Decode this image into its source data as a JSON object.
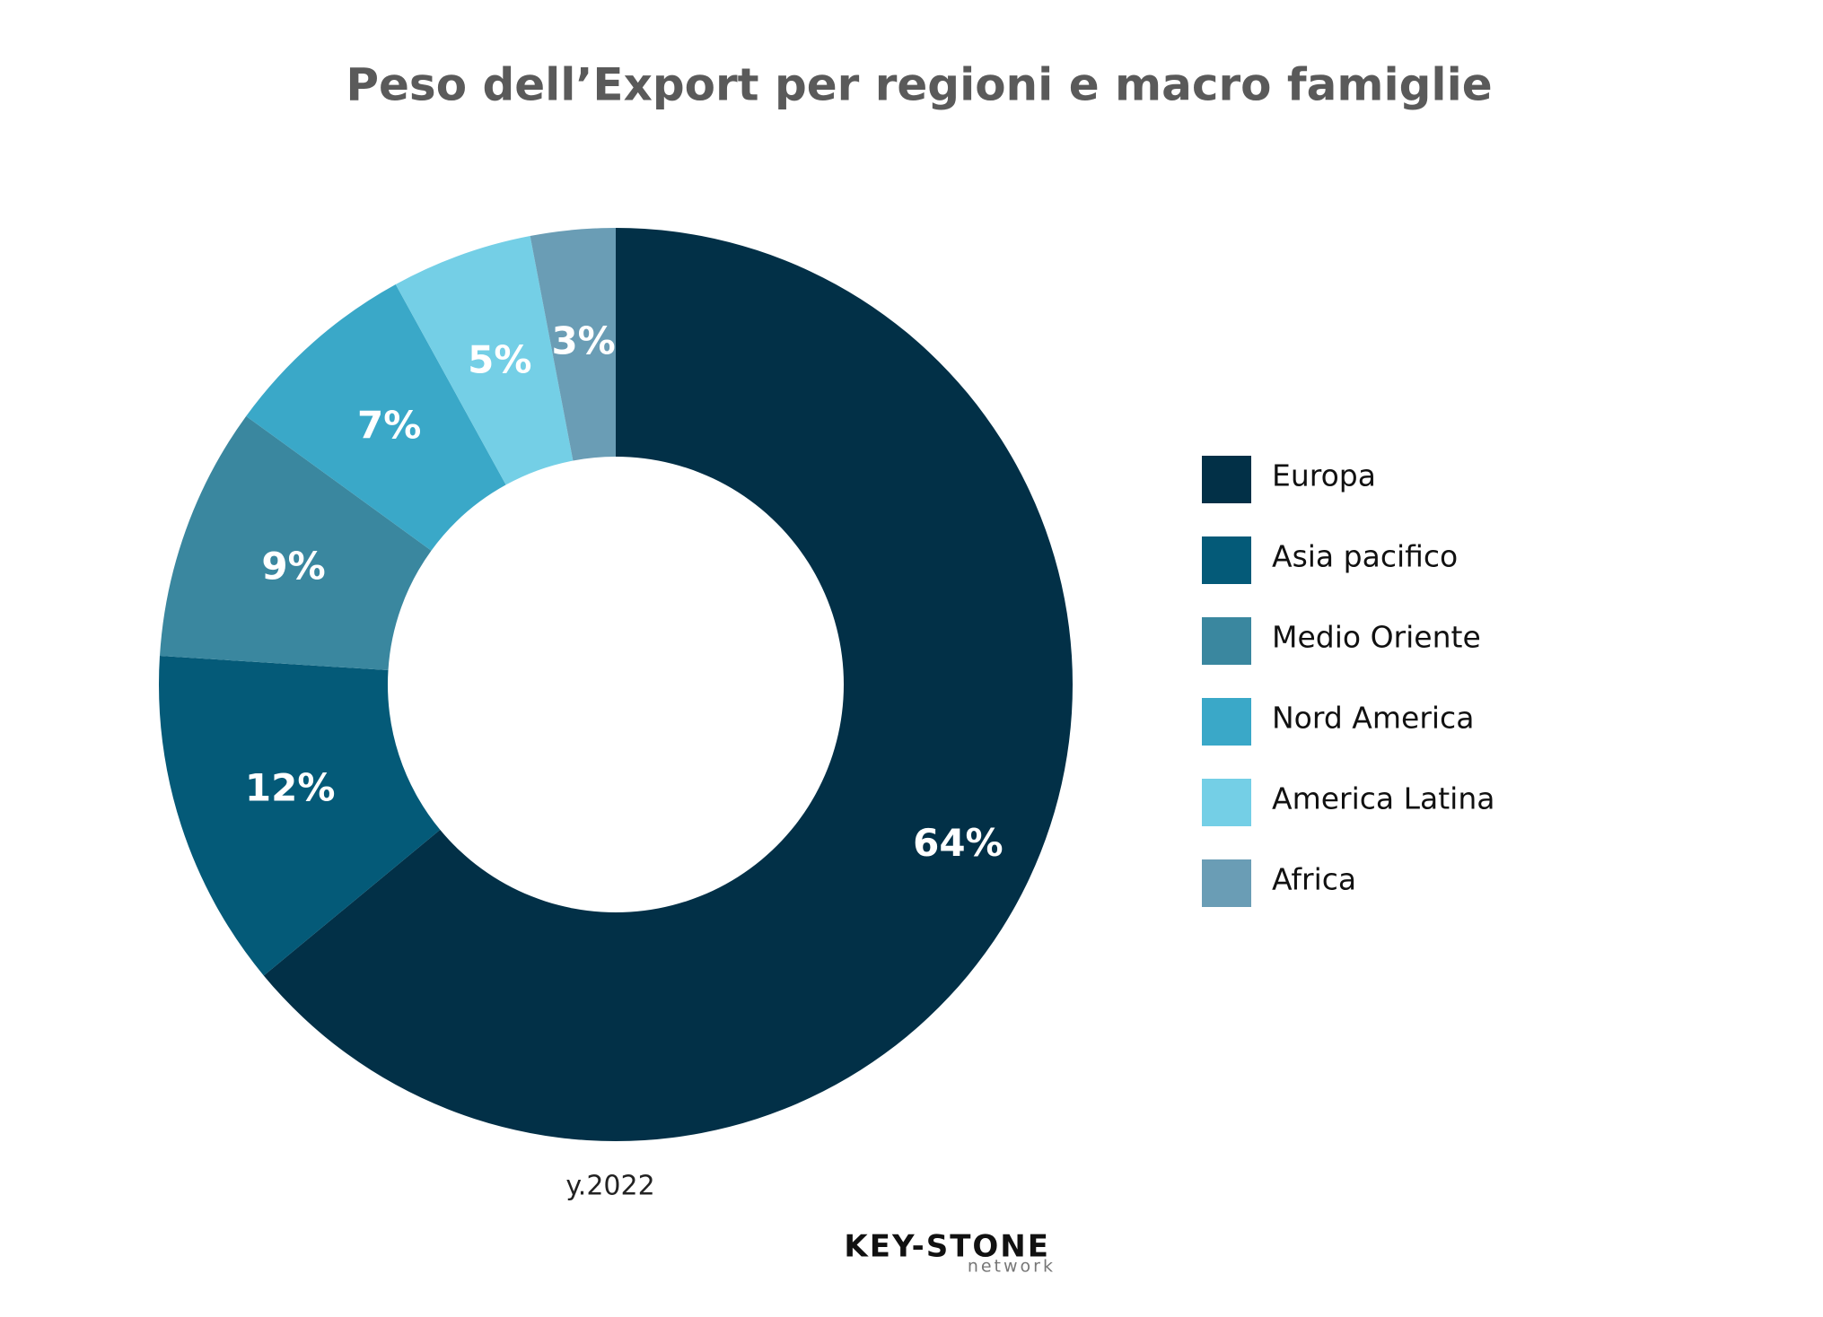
{
  "chart_data": {
    "type": "donut",
    "title": "Peso dell’Export per regioni e macro famiglie",
    "categories": [
      "Europa",
      "Asia pacifico",
      "Medio Oriente",
      "Nord America",
      "America Latina",
      "Africa"
    ],
    "values": [
      64,
      12,
      9,
      7,
      5,
      3
    ],
    "value_labels": [
      "64%",
      "12%",
      "9%",
      "7%",
      "5%",
      "3%"
    ],
    "colors": [
      "#023047",
      "#045a78",
      "#3a879f",
      "#3aa8c8",
      "#74cfe6",
      "#6a9db5"
    ],
    "legend": "right",
    "note": "y.2022"
  },
  "logo": {
    "name": "KEY-STONE",
    "sub": "network"
  }
}
